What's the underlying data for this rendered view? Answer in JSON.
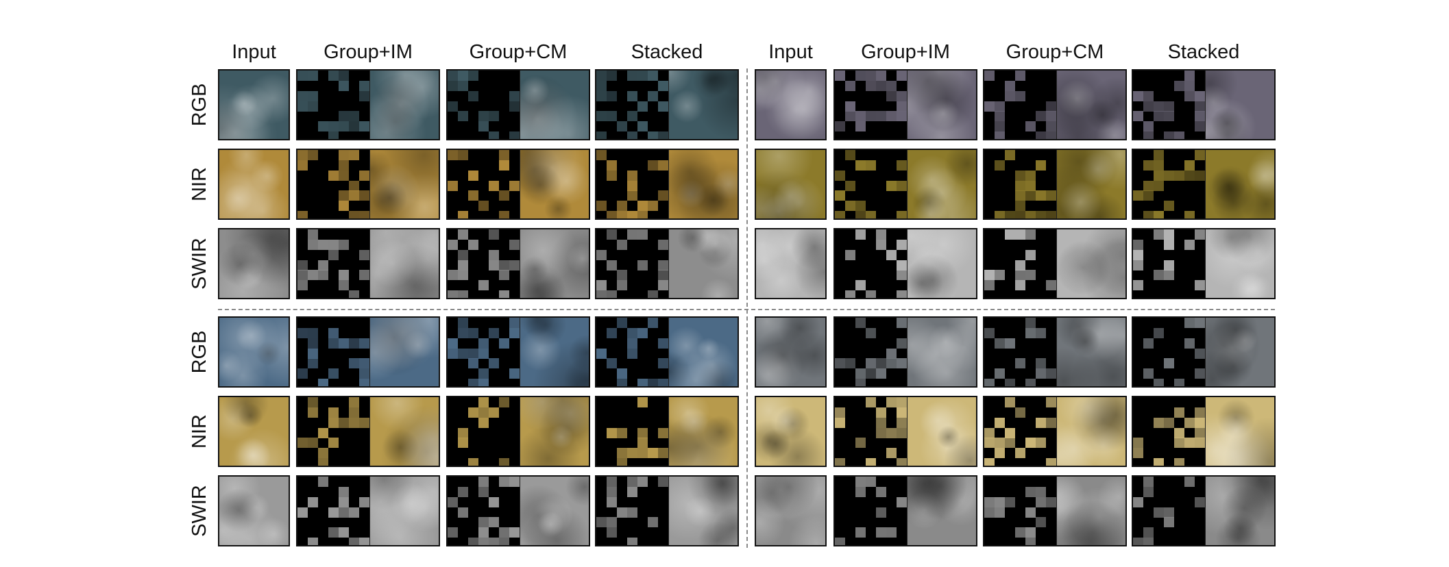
{
  "figure": {
    "column_headers": [
      "Input",
      "Group+IM",
      "Group+CM",
      "Stacked",
      "Input",
      "Group+IM",
      "Group+CM",
      "Stacked"
    ],
    "row_labels": [
      "RGB",
      "NIR",
      "SWIR",
      "RGB",
      "NIR",
      "SWIR"
    ],
    "band_colors": {
      "RGB_a": "#3f5a63",
      "RGB_b": "#4c6a86",
      "RGB_c": "#6a6576",
      "RGB_d": "#70757a",
      "NIR_a": "#b08a3a",
      "NIR_b": "#b79a4c",
      "NIR_c": "#8c7a2a",
      "NIR_d": "#cdb878",
      "SWIR_a": "#8d8d8d",
      "SWIR_b": "#9a9a9a",
      "SWIR_c": "#b5b5b5",
      "SWIR_d": "#8a8a8a"
    }
  }
}
